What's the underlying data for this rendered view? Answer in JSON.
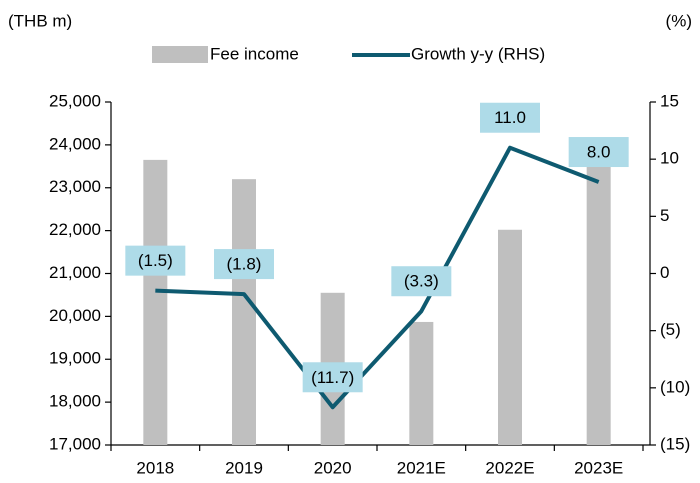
{
  "chart_data": {
    "type": "bar",
    "y_label": "(THB m)",
    "y2_label": "(%)",
    "categories": [
      "2018",
      "2019",
      "2020",
      "2021E",
      "2022E",
      "2023E"
    ],
    "series": [
      {
        "name": "Fee income",
        "type": "bar",
        "color": "#bfbfbf",
        "values": [
          23650,
          23200,
          20550,
          19870,
          22020,
          23500
        ]
      },
      {
        "name": "Growth y-y (RHS)",
        "type": "line",
        "axis": "y2",
        "color": "#0e5a70",
        "values": [
          -1.5,
          -1.8,
          -11.7,
          -3.3,
          11.0,
          8.0
        ],
        "value_labels": [
          "(1.5)",
          "(1.8)",
          "(11.7)",
          "(3.3)",
          "11.0",
          "8.0"
        ]
      }
    ],
    "ylim": [
      17000,
      25000
    ],
    "yticks": [
      {
        "value": 17000,
        "label": "17,000"
      },
      {
        "value": 18000,
        "label": "18,000"
      },
      {
        "value": 19000,
        "label": "19,000"
      },
      {
        "value": 20000,
        "label": "20,000"
      },
      {
        "value": 21000,
        "label": "21,000"
      },
      {
        "value": 22000,
        "label": "22,000"
      },
      {
        "value": 23000,
        "label": "23,000"
      },
      {
        "value": 24000,
        "label": "24,000"
      },
      {
        "value": 25000,
        "label": "25,000"
      }
    ],
    "y2lim": [
      -15,
      15
    ],
    "y2ticks": [
      {
        "value": -15,
        "label": "(15)"
      },
      {
        "value": -10,
        "label": "(10)"
      },
      {
        "value": -5,
        "label": "(5)"
      },
      0,
      5,
      10,
      15
    ],
    "label_box_color": "#aedbe8"
  }
}
